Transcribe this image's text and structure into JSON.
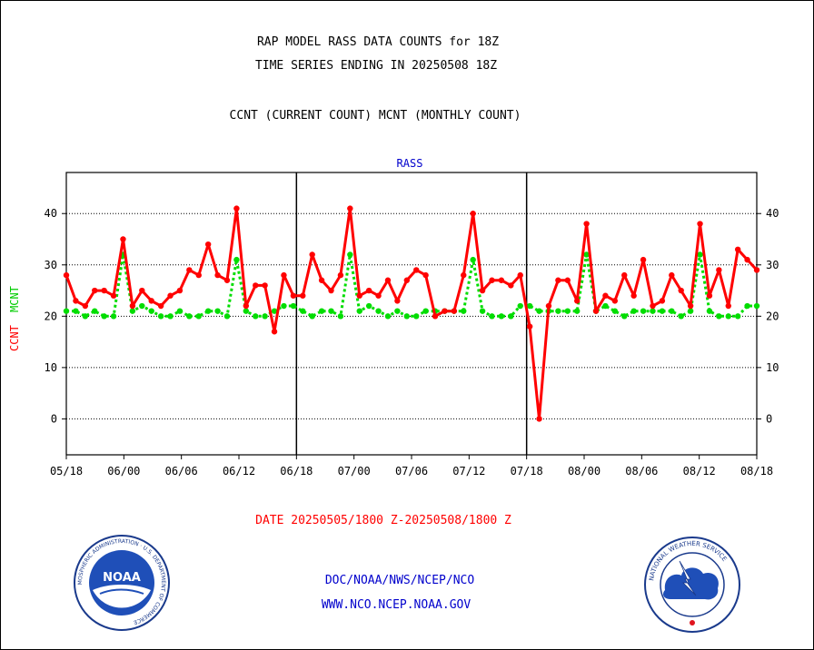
{
  "header": {
    "title_line1": "RAP MODEL RASS DATA COUNTS for 18Z",
    "title_line2": "TIME SERIES ENDING IN 20250508 18Z",
    "subtitle": "CCNT (CURRENT COUNT) MCNT (MONTHLY COUNT)"
  },
  "footer": {
    "date_range": "DATE 20250505/1800 Z-20250508/1800 Z",
    "org_line": "DOC/NOAA/NWS/NCEP/NCO",
    "url_line": "WWW.NCO.NCEP.NOAA.GOV"
  },
  "logos": {
    "noaa": {
      "text": "NOAA",
      "ring_text": "NATIONAL OCEANIC AND ATMOSPHERIC ADMINISTRATION · U.S. DEPARTMENT OF COMMERCE"
    },
    "nws": {
      "ring_text": "NATIONAL WEATHER SERVICE"
    }
  },
  "colors": {
    "ccnt": "#ff0000",
    "mcnt": "#00dd00",
    "panel_title": "#0000cc",
    "footer_link": "#0000cc",
    "date_text": "#ff0000"
  },
  "chart_data": {
    "type": "line",
    "title": "RASS",
    "ylabel_ccnt": "CCNT",
    "ylabel_mcnt": "MCNT",
    "xlabel": "DATE 20250505/1800 Z-20250508/1800 Z",
    "ylim": [
      -7,
      48
    ],
    "yticks": [
      0,
      10,
      20,
      30,
      40
    ],
    "x_range_hours": [
      0,
      72
    ],
    "xticks": [
      {
        "h": 0,
        "label": "05/18"
      },
      {
        "h": 6,
        "label": "06/00"
      },
      {
        "h": 12,
        "label": "06/06"
      },
      {
        "h": 18,
        "label": "06/12"
      },
      {
        "h": 24,
        "label": "06/18"
      },
      {
        "h": 30,
        "label": "07/00"
      },
      {
        "h": 36,
        "label": "07/06"
      },
      {
        "h": 42,
        "label": "07/12"
      },
      {
        "h": 48,
        "label": "07/18"
      },
      {
        "h": 54,
        "label": "08/00"
      },
      {
        "h": 60,
        "label": "08/06"
      },
      {
        "h": 66,
        "label": "08/12"
      },
      {
        "h": 72,
        "label": "08/18"
      }
    ],
    "panel_dividers_hours": [
      24,
      48
    ],
    "gridlines": [
      0,
      10,
      20,
      30,
      40
    ],
    "series": [
      {
        "name": "CCNT",
        "color": "#ff0000",
        "values": [
          28,
          23,
          22,
          25,
          25,
          24,
          35,
          22,
          25,
          23,
          22,
          24,
          25,
          29,
          28,
          34,
          28,
          27,
          41,
          22,
          26,
          26,
          17,
          28,
          24,
          24,
          32,
          27,
          25,
          28,
          41,
          24,
          25,
          24,
          27,
          23,
          27,
          29,
          28,
          20,
          21,
          21,
          28,
          40,
          25,
          27,
          27,
          26,
          28,
          18,
          0,
          22,
          27,
          27,
          23,
          38,
          21,
          24,
          23,
          28,
          24,
          31,
          22,
          23,
          28,
          25,
          22,
          38,
          24,
          29,
          22,
          33,
          31,
          29
        ]
      },
      {
        "name": "MCNT",
        "color": "#00dd00",
        "values": [
          21,
          21,
          20,
          21,
          20,
          20,
          32,
          21,
          22,
          21,
          20,
          20,
          21,
          20,
          20,
          21,
          21,
          20,
          31,
          21,
          20,
          20,
          21,
          22,
          22,
          21,
          20,
          21,
          21,
          20,
          32,
          21,
          22,
          21,
          20,
          21,
          20,
          20,
          21,
          21,
          21,
          21,
          21,
          31,
          21,
          20,
          20,
          20,
          22,
          22,
          21,
          21,
          21,
          21,
          21,
          32,
          21,
          22,
          21,
          20,
          21,
          21,
          21,
          21,
          21,
          20,
          21,
          32,
          21,
          20,
          20,
          20,
          22,
          22
        ]
      }
    ]
  }
}
